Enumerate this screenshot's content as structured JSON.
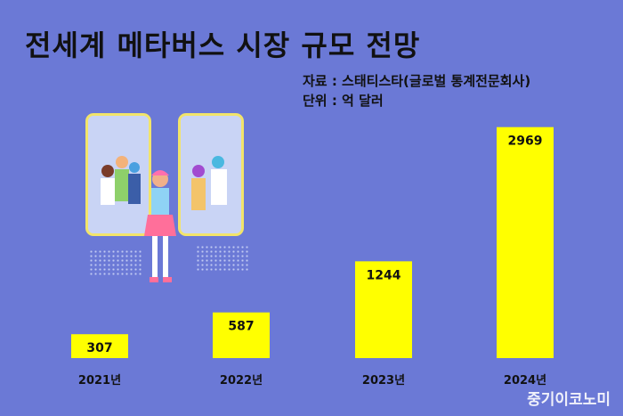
{
  "title": "전세계 메타버스 시장 규모 전망",
  "source": "자료 : 스태티스타(글로벌 통계전문회사)",
  "unit": "단위 : 억 달러",
  "watermark": "중기이코노미",
  "colors": {
    "background": "#6b79d6",
    "bar": "#ffff00",
    "text": "#111111"
  },
  "chart_data": {
    "type": "bar",
    "categories": [
      "2021년",
      "2022년",
      "2023년",
      "2024년"
    ],
    "values": [
      307,
      587,
      1244,
      2969
    ],
    "data_labels": [
      "307",
      "587",
      "1244",
      "2969"
    ],
    "title": "전세계 메타버스 시장 규모 전망",
    "xlabel": "",
    "ylabel": "",
    "ylim": [
      0,
      3000
    ],
    "grid": false,
    "legend": "none"
  }
}
